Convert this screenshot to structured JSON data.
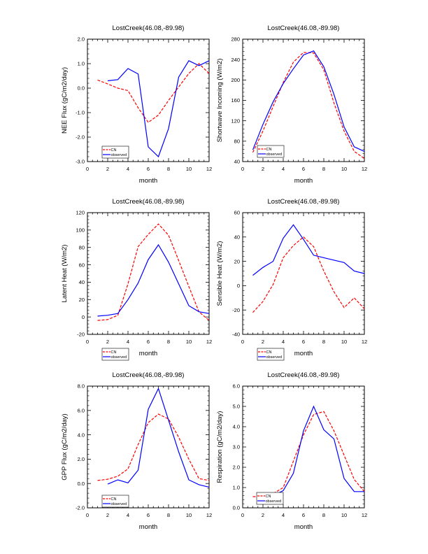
{
  "colors": {
    "CN": "#ff0000",
    "observed": "#0000ff",
    "axis": "#000000"
  },
  "chart_data": [
    {
      "type": "line",
      "title": "LostCreek(46.08,-89.98)",
      "xlabel": "month",
      "ylabel": "NEE Flux (gC/m2/day)",
      "xlim": [
        0,
        12
      ],
      "ylim": [
        -3,
        2
      ],
      "xticks": [
        "0",
        "2",
        "4",
        "6",
        "8",
        "10",
        "12"
      ],
      "yticks": [
        "-3.0",
        "-2.0",
        "-1.0",
        "0.0",
        "1.0",
        "2.0"
      ],
      "legend": [
        "CN",
        "observed"
      ],
      "series": [
        {
          "name": "CN",
          "x": [
            1,
            2,
            3,
            4,
            5,
            6,
            7,
            8,
            9,
            10,
            11,
            12
          ],
          "values": [
            0.33,
            0.17,
            0.0,
            -0.1,
            -0.8,
            -1.4,
            -1.1,
            -0.5,
            0.05,
            0.6,
            1.0,
            0.6
          ]
        },
        {
          "name": "observed",
          "x": [
            2,
            3,
            4,
            5,
            6,
            7,
            8,
            9,
            10,
            11,
            12
          ],
          "values": [
            0.3,
            0.35,
            0.8,
            0.58,
            -2.4,
            -2.8,
            -1.65,
            0.45,
            1.12,
            0.92,
            1.12
          ]
        }
      ]
    },
    {
      "type": "line",
      "title": "LostCreek(46.08,-89.98)",
      "xlabel": "month",
      "ylabel": "Shortwave Incoming (W/m2)",
      "xlim": [
        0,
        12
      ],
      "ylim": [
        40,
        280
      ],
      "xticks": [
        "0",
        "2",
        "4",
        "6",
        "8",
        "10",
        "12"
      ],
      "yticks": [
        "40",
        "80",
        "120",
        "160",
        "200",
        "240",
        "280"
      ],
      "legend": [
        "CN",
        "observed"
      ],
      "series": [
        {
          "name": "CN",
          "x": [
            1,
            2,
            3,
            4,
            5,
            6,
            7,
            8,
            9,
            10,
            11,
            12
          ],
          "values": [
            58,
            100,
            148,
            195,
            235,
            254,
            253,
            220,
            155,
            100,
            60,
            46
          ]
        },
        {
          "name": "observed",
          "x": [
            1,
            2,
            3,
            4,
            5,
            6,
            7,
            8,
            9,
            10,
            11,
            12
          ],
          "values": [
            63,
            113,
            157,
            193,
            222,
            249,
            257,
            226,
            172,
            108,
            69,
            60
          ]
        }
      ]
    },
    {
      "type": "line",
      "title": "LostCreek(46.08,-89.98)",
      "xlabel": "month",
      "ylabel": "Latent Heat (W/m2)",
      "xlim": [
        0,
        12
      ],
      "ylim": [
        -20,
        120
      ],
      "xticks": [
        "0",
        "2",
        "4",
        "6",
        "8",
        "10",
        "12"
      ],
      "yticks": [
        "-20",
        "0",
        "20",
        "40",
        "60",
        "80",
        "100",
        "120"
      ],
      "legend": [
        "CN",
        "observed"
      ],
      "series": [
        {
          "name": "CN",
          "x": [
            1,
            2,
            3,
            4,
            5,
            6,
            7,
            8,
            9,
            10,
            11,
            12
          ],
          "values": [
            -4,
            -3,
            2,
            38,
            81,
            95,
            107,
            94,
            65,
            35,
            6,
            -4
          ]
        },
        {
          "name": "observed",
          "x": [
            1,
            2,
            3,
            4,
            5,
            6,
            7,
            8,
            9,
            10,
            11,
            12
          ],
          "values": [
            1,
            2,
            4,
            20,
            39,
            66,
            83,
            63,
            38,
            13,
            6,
            4
          ]
        }
      ]
    },
    {
      "type": "line",
      "title": "LostCreek(46.08,-89.98)",
      "xlabel": "month",
      "ylabel": "Sensible Heat (W/m2)",
      "xlim": [
        0,
        12
      ],
      "ylim": [
        -40,
        60
      ],
      "xticks": [
        "0",
        "2",
        "4",
        "6",
        "8",
        "10",
        "12"
      ],
      "yticks": [
        "-40",
        "-20",
        "0",
        "20",
        "40",
        "60"
      ],
      "legend": [
        "CN",
        "observed"
      ],
      "series": [
        {
          "name": "CN",
          "x": [
            1,
            2,
            3,
            4,
            5,
            6,
            7,
            8,
            9,
            10,
            11,
            12
          ],
          "values": [
            -22,
            -13,
            1,
            23,
            33,
            40,
            32,
            12,
            -5,
            -18,
            -10,
            -19
          ]
        },
        {
          "name": "observed",
          "x": [
            1,
            2,
            3,
            4,
            5,
            6,
            7,
            8,
            9,
            10,
            11,
            12
          ],
          "values": [
            8.5,
            15,
            20,
            39,
            50,
            38,
            25,
            23,
            21,
            19,
            12,
            10
          ]
        }
      ]
    },
    {
      "type": "line",
      "title": "LostCreek(46.08,-89.98)",
      "xlabel": "month",
      "ylabel": "GPP Flux (gC/m2/day)",
      "xlim": [
        0,
        12
      ],
      "ylim": [
        -2,
        8
      ],
      "xticks": [
        "0",
        "2",
        "4",
        "6",
        "8",
        "10",
        "12"
      ],
      "yticks": [
        "-2.0",
        "0.0",
        "2.0",
        "4.0",
        "6.0",
        "8.0"
      ],
      "legend": [
        "CN",
        "observed"
      ],
      "series": [
        {
          "name": "CN",
          "x": [
            1,
            2,
            3,
            4,
            5,
            6,
            7,
            8,
            9,
            10,
            11,
            12
          ],
          "values": [
            0.25,
            0.35,
            0.6,
            1.2,
            3.2,
            5.0,
            5.7,
            5.3,
            3.8,
            2.0,
            0.4,
            0.25
          ]
        },
        {
          "name": "observed",
          "x": [
            2,
            3,
            4,
            5,
            6,
            7,
            8,
            9,
            10,
            11,
            12
          ],
          "values": [
            -0.05,
            0.3,
            0.05,
            1.1,
            6.1,
            7.8,
            5.2,
            2.6,
            0.3,
            -0.1,
            -0.3
          ]
        }
      ]
    },
    {
      "type": "line",
      "title": "LostCreek(46.08,-89.98)",
      "xlabel": "month",
      "ylabel": "Respiration (gC/m2/day)",
      "xlim": [
        0,
        12
      ],
      "ylim": [
        0,
        6
      ],
      "xticks": [
        "0",
        "2",
        "4",
        "6",
        "8",
        "10",
        "12"
      ],
      "yticks": [
        "0.0",
        "1.0",
        "2.0",
        "3.0",
        "4.0",
        "5.0",
        "6.0"
      ],
      "legend": [
        "CN",
        "observed"
      ],
      "series": [
        {
          "name": "CN",
          "x": [
            1,
            2,
            3,
            4,
            5,
            6,
            7,
            8,
            9,
            10,
            11,
            12
          ],
          "values": [
            0.55,
            0.55,
            0.7,
            1.0,
            2.3,
            3.6,
            4.6,
            4.75,
            3.8,
            2.6,
            1.4,
            0.8
          ]
        },
        {
          "name": "observed",
          "x": [
            2,
            3,
            4,
            5,
            6,
            7,
            8,
            9,
            10,
            11,
            12
          ],
          "values": [
            0.25,
            0.6,
            0.85,
            1.7,
            3.8,
            5.0,
            3.85,
            3.4,
            1.45,
            0.8,
            0.8
          ]
        }
      ]
    }
  ]
}
